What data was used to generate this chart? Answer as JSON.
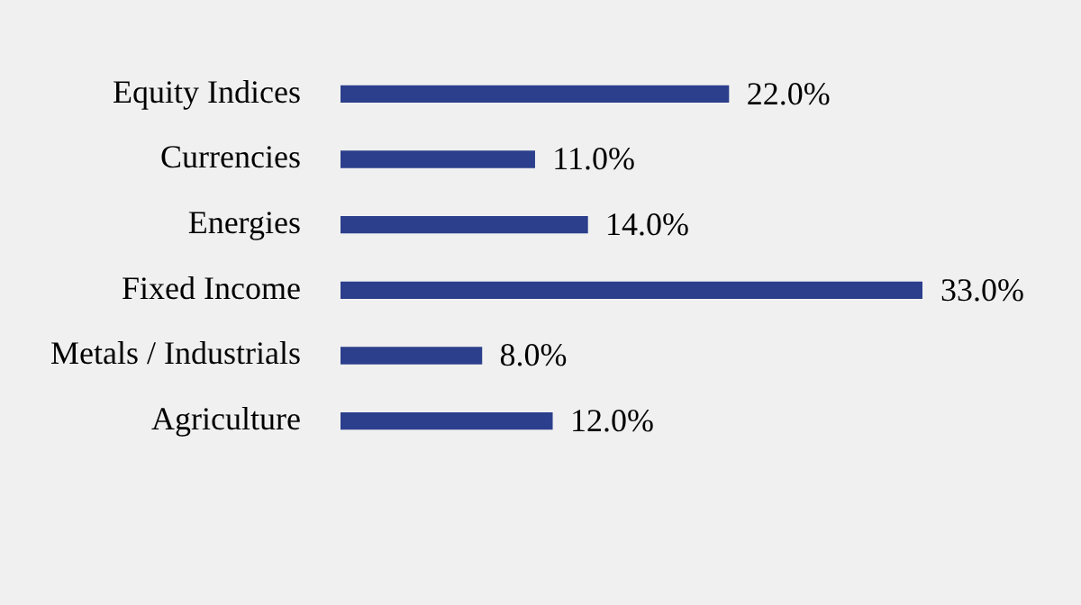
{
  "chart_data": {
    "type": "bar",
    "orientation": "horizontal",
    "categories": [
      "Equity Indices",
      "Currencies",
      "Energies",
      "Fixed Income",
      "Metals / Industrials",
      "Agriculture"
    ],
    "values": [
      22.0,
      11.0,
      14.0,
      33.0,
      8.0,
      12.0
    ],
    "value_labels": [
      "22.0%",
      "11.0%",
      "14.0%",
      "33.0%",
      "8.0%",
      "12.0%"
    ],
    "color": "#2b3f8c",
    "tick_labels": "y"
  }
}
